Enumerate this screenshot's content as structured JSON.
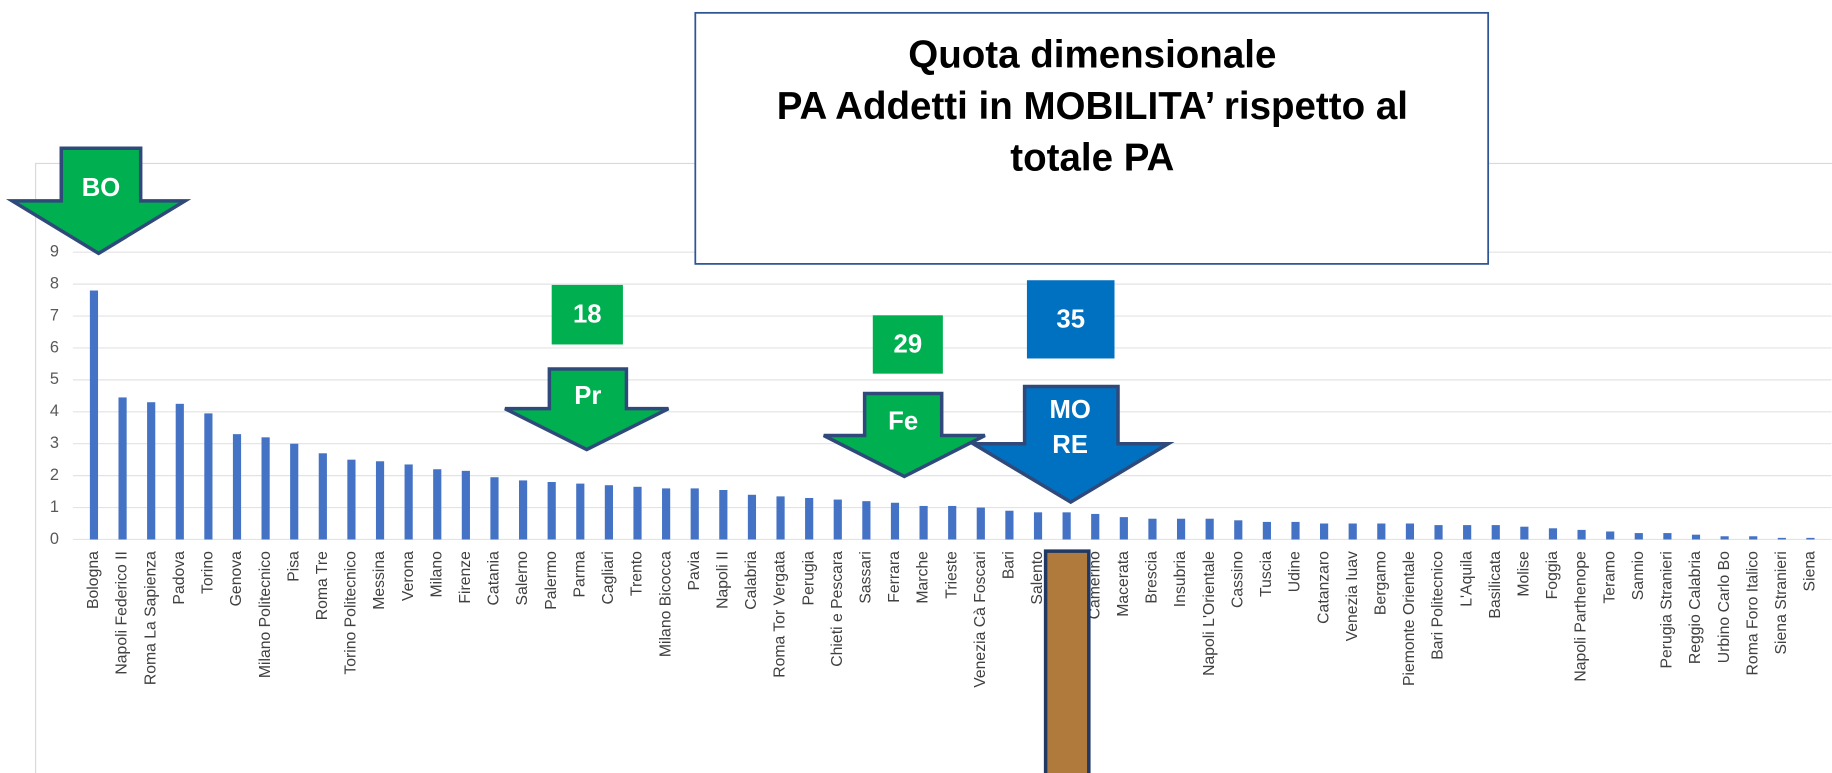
{
  "chart_data": {
    "type": "bar",
    "title_lines": [
      "Quota dimensionale",
      "PA  Addetti in MOBILITA’ rispetto al",
      "totale PA"
    ],
    "categories": [
      "Bologna",
      "Napoli Federico II",
      "Roma La Sapienza",
      "Padova",
      "Torino",
      "Genova",
      "Milano Politecnico",
      "Pisa",
      "Roma Tre",
      "Torino Politecnico",
      "Messina",
      "Verona",
      "Milano",
      "Firenze",
      "Catania",
      "Salerno",
      "Palermo",
      "Parma",
      "Cagliari",
      "Trento",
      "Milano Bicocca",
      "Pavia",
      "Napoli II",
      "Calabria",
      "Roma Tor Vergata",
      "Perugia",
      "Chieti e Pescara",
      "Sassari",
      "Ferrara",
      "Marche",
      "Trieste",
      "Venezia Cà Foscari",
      "Bari",
      "Salento",
      null,
      "Camerino",
      "Macerata",
      "Brescia",
      "Insubria",
      "Napoli L'Orientale",
      "Cassino",
      "Tuscia",
      "Udine",
      "Catanzaro",
      "Venezia Iuav",
      "Bergamo",
      "Piemonte Orientale",
      "Bari Politecnico",
      "L'Aquila",
      "Basilicata",
      "Molise",
      "Foggia",
      "Napoli Parthenope",
      "Teramo",
      "Sannio",
      "Perugia Stranieri",
      "Reggio Calabria",
      "Urbino Carlo Bo",
      "Roma Foro Italico",
      "Siena Stranieri",
      "Siena"
    ],
    "values": [
      7.8,
      4.45,
      4.3,
      4.25,
      3.95,
      3.3,
      3.2,
      3.0,
      2.7,
      2.5,
      2.45,
      2.35,
      2.2,
      2.15,
      1.95,
      1.85,
      1.8,
      1.75,
      1.7,
      1.65,
      1.6,
      1.6,
      1.55,
      1.4,
      1.35,
      1.3,
      1.25,
      1.2,
      1.15,
      1.05,
      1.05,
      1.0,
      0.9,
      0.85,
      0.85,
      0.8,
      0.7,
      0.65,
      0.65,
      0.65,
      0.6,
      0.55,
      0.55,
      0.5,
      0.5,
      0.5,
      0.5,
      0.45,
      0.45,
      0.45,
      0.4,
      0.35,
      0.3,
      0.25,
      0.2,
      0.2,
      0.15,
      0.1,
      0.1,
      0.05,
      0.05
    ],
    "color": "#4472c4",
    "ylim": [
      0,
      9
    ],
    "yticks": [
      0,
      1,
      2,
      3,
      4,
      5,
      6,
      7,
      8,
      9
    ],
    "grid": true,
    "annotations": [
      {
        "label": "BO",
        "index": 0,
        "color": "#00b050"
      },
      {
        "label": "Pr",
        "index": 17,
        "color": "#00b050",
        "rank": 18
      },
      {
        "label": "Fe",
        "index": 28,
        "color": "#00b050",
        "rank": 29
      },
      {
        "label": "MO RE",
        "index": 34,
        "color": "#0070c0",
        "rank": 35
      }
    ]
  }
}
